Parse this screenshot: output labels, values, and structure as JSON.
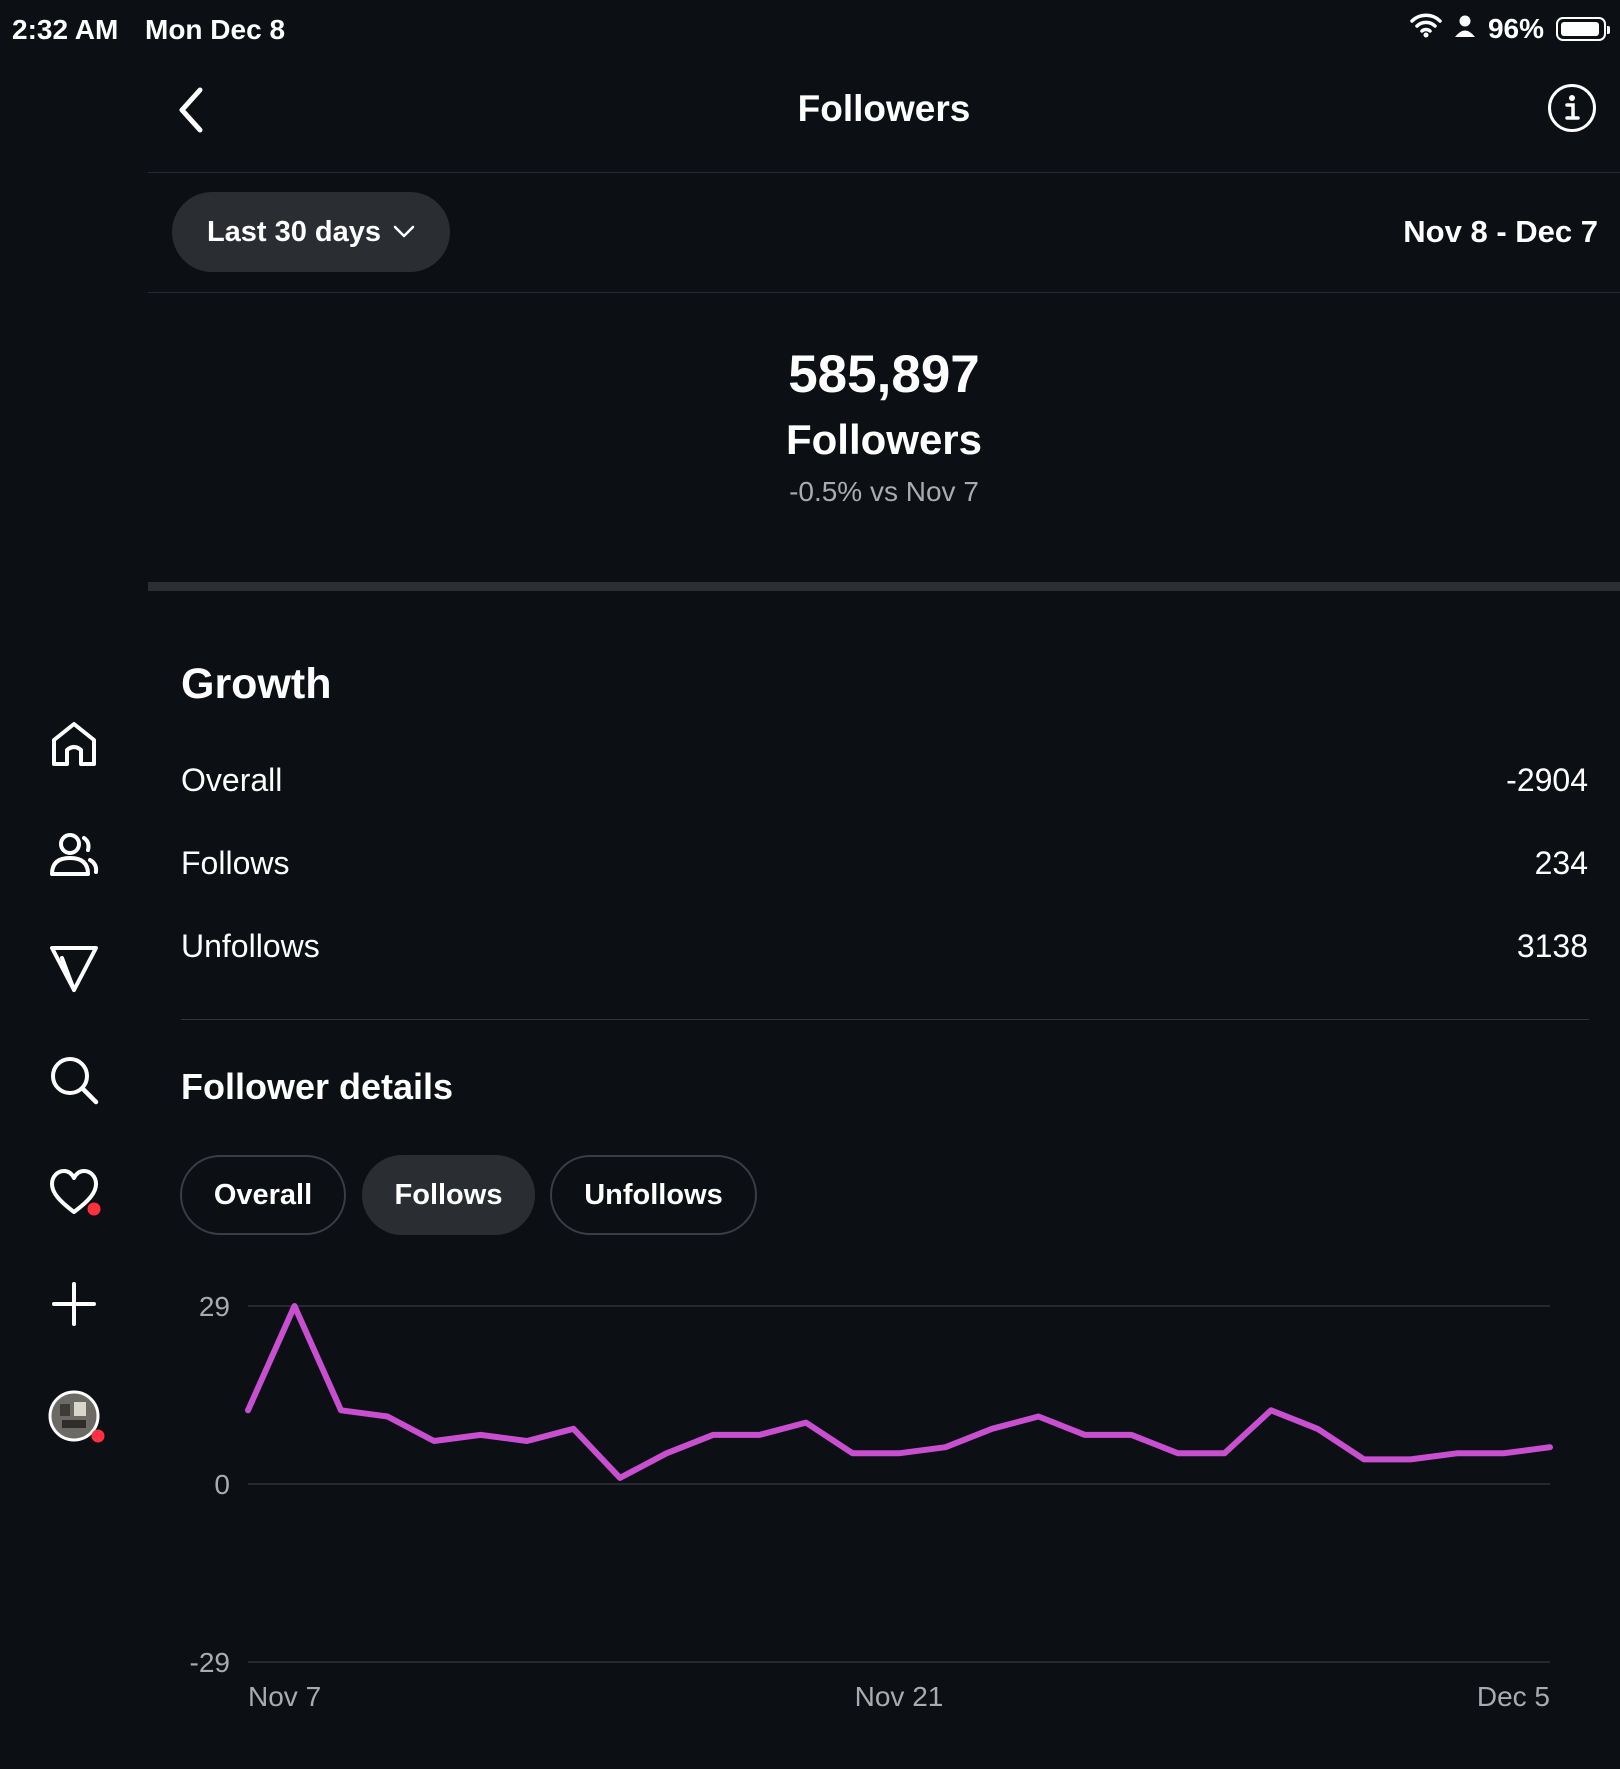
{
  "status_bar": {
    "time": "2:32 AM",
    "date": "Mon Dec 8",
    "battery": "96%",
    "battery_level": 0.96
  },
  "header": {
    "title": "Followers"
  },
  "period": {
    "selector_label": "Last 30 days",
    "date_range": "Nov 8 - Dec 7"
  },
  "summary": {
    "total": "585,897",
    "label": "Followers",
    "change": "-0.5% vs Nov 7"
  },
  "growth": {
    "title": "Growth",
    "rows": [
      {
        "label": "Overall",
        "value": "-2904"
      },
      {
        "label": "Follows",
        "value": "234"
      },
      {
        "label": "Unfollows",
        "value": "3138"
      }
    ]
  },
  "details": {
    "title": "Follower details",
    "tabs": [
      {
        "label": "Overall",
        "active": false
      },
      {
        "label": "Follows",
        "active": true
      },
      {
        "label": "Unfollows",
        "active": false
      }
    ]
  },
  "sidebar": {
    "icons": [
      "home-icon",
      "profile-icon",
      "send-icon",
      "search-icon",
      "heart-icon",
      "plus-icon",
      "avatar"
    ]
  },
  "colors": {
    "background": "#0c0f14",
    "line": "#c84fd0",
    "notification_dot": "#ff3040"
  },
  "chart_data": {
    "type": "line",
    "y_tick_labels": [
      "29",
      "0",
      "-29"
    ],
    "ylim": [
      -29,
      29
    ],
    "x_tick_labels": [
      "Nov 7",
      "Nov 21",
      "Dec 5"
    ],
    "x": [
      "Nov 7",
      "Nov 8",
      "Nov 9",
      "Nov 10",
      "Nov 11",
      "Nov 12",
      "Nov 13",
      "Nov 14",
      "Nov 15",
      "Nov 16",
      "Nov 17",
      "Nov 18",
      "Nov 19",
      "Nov 20",
      "Nov 21",
      "Nov 22",
      "Nov 23",
      "Nov 24",
      "Nov 25",
      "Nov 26",
      "Nov 27",
      "Nov 28",
      "Nov 29",
      "Nov 30",
      "Dec 1",
      "Dec 2",
      "Dec 3",
      "Dec 4",
      "Dec 5"
    ],
    "series": [
      {
        "values": [
          12,
          29,
          12,
          11,
          7,
          8,
          7,
          9,
          1,
          5,
          8,
          8,
          10,
          5,
          5,
          6,
          9,
          11,
          8,
          8,
          5,
          5,
          12,
          9,
          4,
          4,
          5,
          5,
          6
        ]
      }
    ],
    "grid": true
  }
}
